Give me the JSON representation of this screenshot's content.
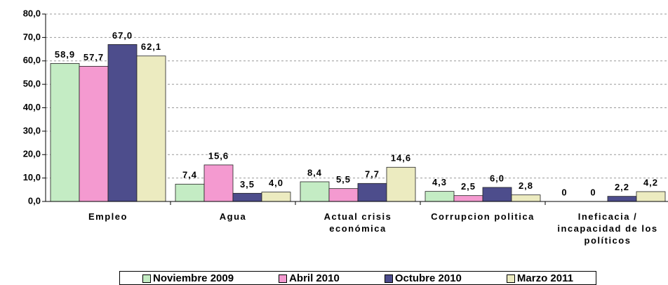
{
  "chart_data": {
    "type": "bar",
    "categories": [
      "Empleo",
      "Agua",
      "Actual crisis económica",
      "Corrupcion politica",
      "Ineficacia / incapacidad de los políticos"
    ],
    "series": [
      {
        "name": "Noviembre 2009",
        "color": "#c4ecc4",
        "values": [
          58.9,
          7.4,
          8.4,
          4.3,
          0
        ],
        "value_labels": [
          "58,9",
          "7,4",
          "8,4",
          "4,3",
          "0"
        ]
      },
      {
        "name": "Abril 2010",
        "color": "#f49ad0",
        "values": [
          57.7,
          15.6,
          5.5,
          2.5,
          0
        ],
        "value_labels": [
          "57,7",
          "15,6",
          "5,5",
          "2,5",
          "0"
        ]
      },
      {
        "name": "Octubre 2010",
        "color": "#4d4d8c",
        "values": [
          67.0,
          3.5,
          7.7,
          6.0,
          2.2
        ],
        "value_labels": [
          "67,0",
          "3,5",
          "7,7",
          "6,0",
          "2,2"
        ]
      },
      {
        "name": "Marzo 2011",
        "color": "#ecebc0",
        "values": [
          62.1,
          4.0,
          14.6,
          2.8,
          4.2
        ],
        "value_labels": [
          "62,1",
          "4,0",
          "14,6",
          "2,8",
          "4,2"
        ]
      }
    ],
    "ylim": [
      0,
      80
    ],
    "yticks": [
      {
        "value": 0,
        "label": "0,0"
      },
      {
        "value": 10,
        "label": "10,0"
      },
      {
        "value": 20,
        "label": "20,0"
      },
      {
        "value": 30,
        "label": "30,0"
      },
      {
        "value": 40,
        "label": "40,0"
      },
      {
        "value": 50,
        "label": "50,0"
      },
      {
        "value": 60,
        "label": "60,0"
      },
      {
        "value": 70,
        "label": "70,0"
      },
      {
        "value": 80,
        "label": "80,0"
      }
    ],
    "grid": true
  }
}
